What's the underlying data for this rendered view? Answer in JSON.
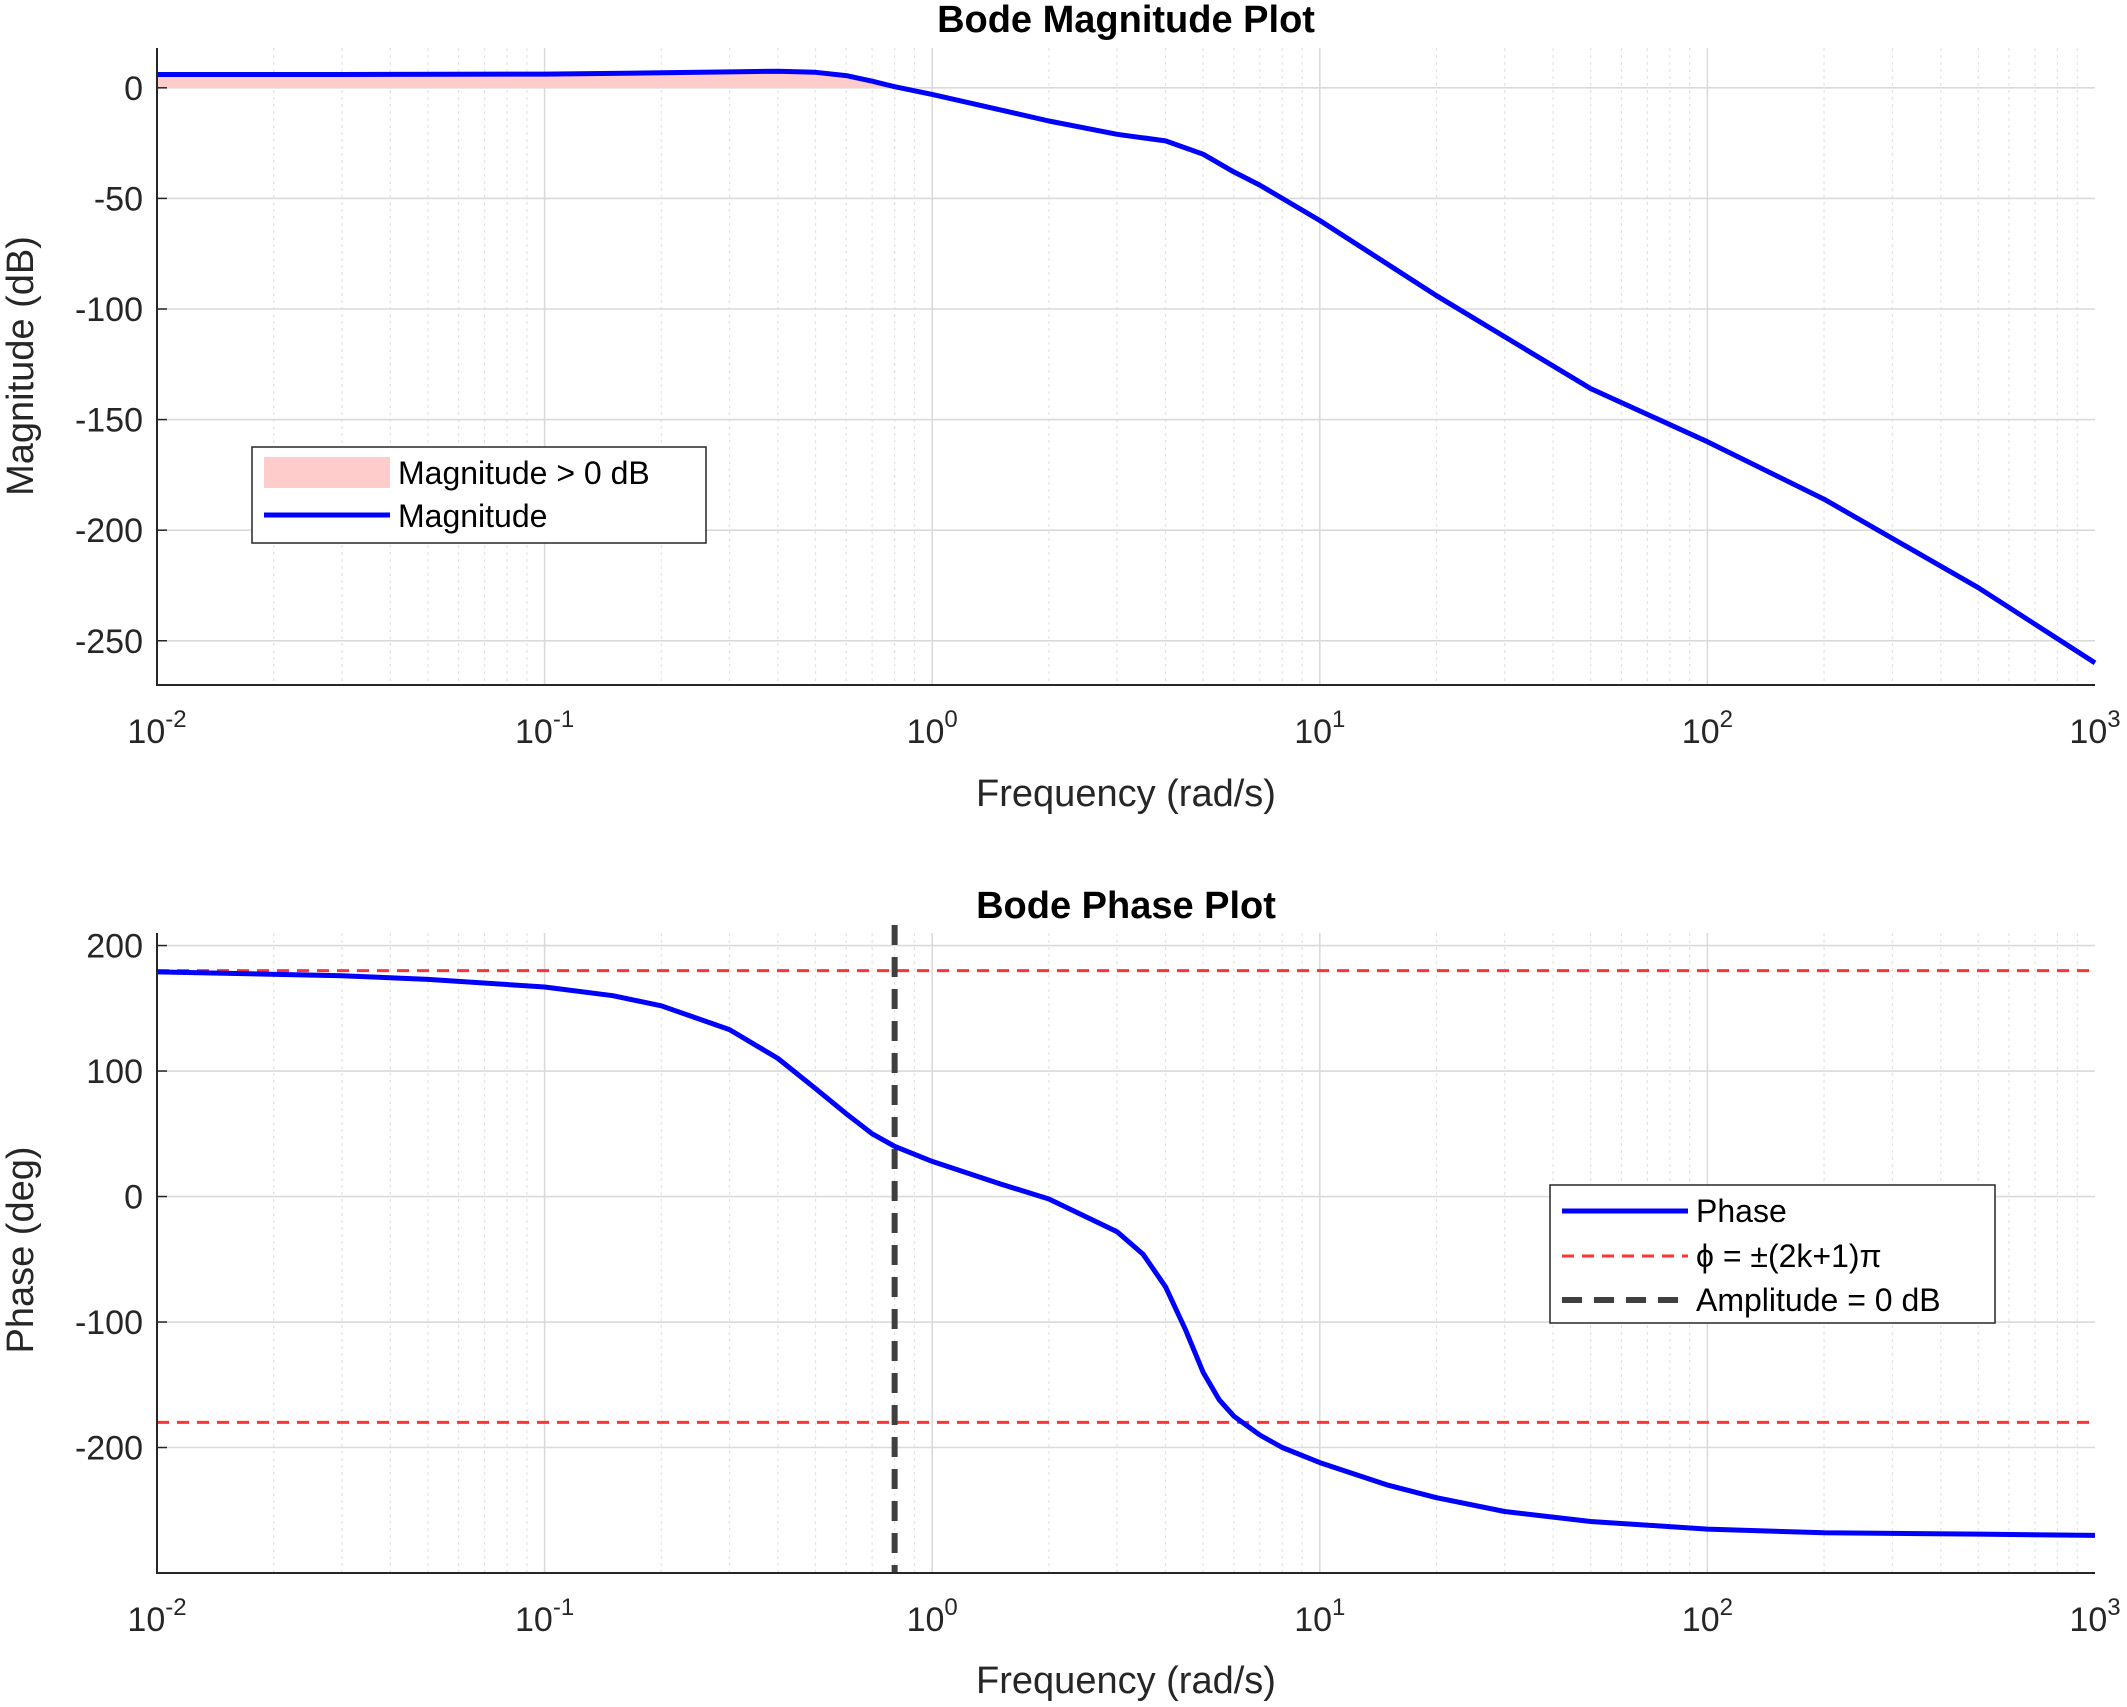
{
  "chart_data": [
    {
      "type": "line",
      "title": "Bode Magnitude Plot",
      "xlabel": "Frequency (rad/s)",
      "ylabel": "Magnitude (dB)",
      "xscale": "log",
      "xlim": [
        0.01,
        1000
      ],
      "ylim": [
        -270,
        18
      ],
      "yticks": [
        0,
        -50,
        -100,
        -150,
        -200,
        -250
      ],
      "xtick_labels": [
        {
          "base": "10",
          "exp": "-2"
        },
        {
          "base": "10",
          "exp": "-1"
        },
        {
          "base": "10",
          "exp": "0"
        },
        {
          "base": "10",
          "exp": "1"
        },
        {
          "base": "10",
          "exp": "2"
        },
        {
          "base": "10",
          "exp": "3"
        }
      ],
      "grid": true,
      "legend_position": "middle-left",
      "series": [
        {
          "name": "Magnitude",
          "color": "#0000ff",
          "x": [
            0.01,
            0.03,
            0.1,
            0.2,
            0.3,
            0.4,
            0.5,
            0.6,
            0.7,
            0.8,
            1,
            1.5,
            2,
            3,
            4,
            5,
            6,
            7,
            10,
            20,
            50,
            100,
            200,
            500,
            1000
          ],
          "y": [
            6,
            6,
            6.2,
            6.8,
            7.2,
            7.5,
            7,
            5.5,
            3,
            0.5,
            -3,
            -10,
            -15,
            -21,
            -24,
            -30,
            -38,
            -44,
            -60,
            -94,
            -136,
            -160,
            -186,
            -226,
            -260
          ]
        },
        {
          "name": "Magnitude > 0 dB",
          "type": "area",
          "color": "#ffcccc",
          "x": [
            0.01,
            0.03,
            0.1,
            0.2,
            0.3,
            0.4,
            0.5,
            0.6,
            0.7,
            0.8
          ],
          "y": [
            6,
            6,
            6.2,
            6.8,
            7.2,
            7.5,
            7,
            5.5,
            3,
            0.5
          ]
        }
      ]
    },
    {
      "type": "line",
      "title": "Bode Phase Plot",
      "xlabel": "Frequency (rad/s)",
      "ylabel": "Phase (deg)",
      "xscale": "log",
      "xlim": [
        0.01,
        1000
      ],
      "ylim": [
        -300,
        210
      ],
      "yticks": [
        200,
        100,
        0,
        -100,
        -200
      ],
      "xtick_labels": [
        {
          "base": "10",
          "exp": "-2"
        },
        {
          "base": "10",
          "exp": "-1"
        },
        {
          "base": "10",
          "exp": "0"
        },
        {
          "base": "10",
          "exp": "1"
        },
        {
          "base": "10",
          "exp": "2"
        },
        {
          "base": "10",
          "exp": "3"
        }
      ],
      "grid": true,
      "legend_position": "middle-right",
      "series": [
        {
          "name": "Phase",
          "color": "#0000ff",
          "x": [
            0.01,
            0.03,
            0.05,
            0.1,
            0.15,
            0.2,
            0.3,
            0.4,
            0.5,
            0.6,
            0.7,
            0.8,
            1,
            1.5,
            2,
            3,
            3.5,
            4,
            4.5,
            5,
            5.5,
            6,
            7,
            8,
            10,
            15,
            20,
            30,
            50,
            100,
            200,
            500,
            1000
          ],
          "y": [
            179,
            176,
            173,
            167,
            160,
            152,
            133,
            110,
            86,
            66,
            50,
            40,
            28,
            10,
            -2,
            -28,
            -46,
            -72,
            -106,
            -140,
            -162,
            -175,
            -190,
            -200,
            -212,
            -230,
            -240,
            -251,
            -259,
            -265,
            -268,
            -269,
            -270
          ]
        },
        {
          "name": "ϕ = ±(2k+1)π",
          "type": "hline",
          "color": "#ff3333",
          "values": [
            180,
            -180
          ]
        },
        {
          "name": "Amplitude = 0 dB",
          "type": "vline",
          "color": "#404040",
          "x": 0.8
        }
      ]
    }
  ]
}
